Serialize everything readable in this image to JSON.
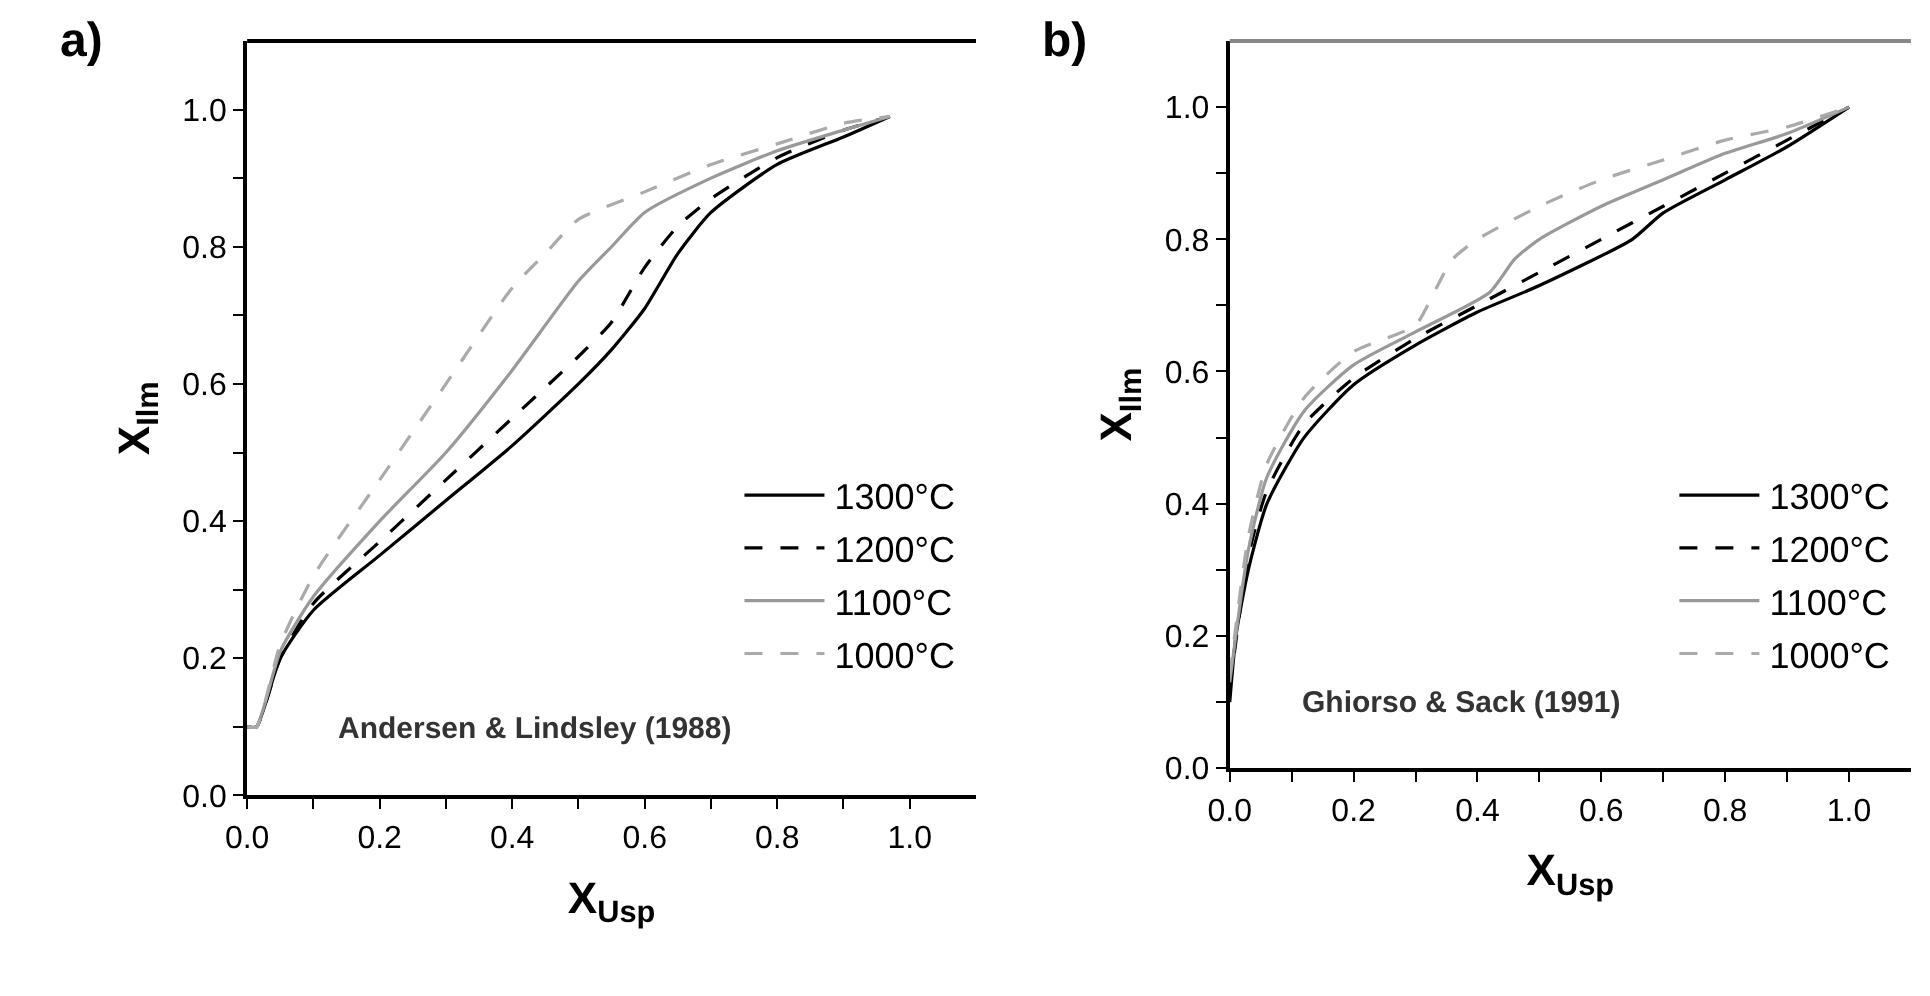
{
  "chart_data": [
    {
      "type": "line",
      "title": "a)",
      "xlabel": "X$_{Usp}$",
      "ylabel": "X$_{Ilm}$",
      "legend": "right",
      "marker": "none",
      "xlim": [
        0,
        1.1
      ],
      "ylim": [
        0,
        1.1
      ],
      "xticks": [
        {
          "value": 0,
          "label": "0.0"
        },
        {
          "value": 0.1,
          "label": null
        },
        {
          "value": 0.2,
          "label": "0.2"
        },
        {
          "value": 0.3,
          "label": null
        },
        {
          "value": 0.4,
          "label": "0.4"
        },
        {
          "value": 0.5,
          "label": null
        },
        {
          "value": 0.6,
          "label": "0.6"
        },
        {
          "value": 0.7,
          "label": null
        },
        {
          "value": 0.8,
          "label": "0.8"
        },
        {
          "value": 0.9,
          "label": null
        },
        {
          "value": 1,
          "label": "1.0"
        }
      ],
      "yticks": [
        {
          "value": 0,
          "label": "0.0"
        },
        {
          "value": 0.1,
          "label": null
        },
        {
          "value": 0.2,
          "label": "0.2"
        },
        {
          "value": 0.3,
          "label": null
        },
        {
          "value": 0.4,
          "label": "0.4"
        },
        {
          "value": 0.5,
          "label": null
        },
        {
          "value": 0.6,
          "label": "0.6"
        },
        {
          "value": 0.7,
          "label": null
        },
        {
          "value": 0.8,
          "label": "0.8"
        },
        {
          "value": 0.9,
          "label": null
        },
        {
          "value": 1,
          "label": "1.0"
        }
      ],
      "annotations": [
        "Andersen & Lindsley (1988)"
      ],
      "series": [
        {
          "name": "1300°C",
          "color": "#000000",
          "line_style": "solid",
          "x": [
            0,
            0.014,
            0.05,
            0.1,
            0.2,
            0.3,
            0.4,
            0.5,
            0.55,
            0.6,
            0.65,
            0.7,
            0.8,
            0.9,
            0.97
          ],
          "values": [
            0.1,
            0.1,
            0.2,
            0.27,
            0.35,
            0.43,
            0.51,
            0.6,
            0.65,
            0.71,
            0.79,
            0.85,
            0.92,
            0.96,
            0.99
          ]
        },
        {
          "name": "1200°C",
          "color": "#000000",
          "line_style": "dashed",
          "x": [
            0,
            0.014,
            0.05,
            0.1,
            0.2,
            0.3,
            0.4,
            0.5,
            0.55,
            0.6,
            0.65,
            0.7,
            0.8,
            0.9,
            0.97
          ],
          "values": [
            0.1,
            0.1,
            0.2,
            0.28,
            0.37,
            0.46,
            0.55,
            0.64,
            0.69,
            0.77,
            0.83,
            0.87,
            0.93,
            0.97,
            0.99
          ]
        },
        {
          "name": "1100°C",
          "color": "#999999",
          "line_style": "solid",
          "x": [
            0,
            0.014,
            0.05,
            0.1,
            0.2,
            0.3,
            0.4,
            0.5,
            0.55,
            0.6,
            0.7,
            0.8,
            0.9,
            0.97
          ],
          "values": [
            0.1,
            0.1,
            0.21,
            0.29,
            0.4,
            0.5,
            0.62,
            0.75,
            0.8,
            0.85,
            0.9,
            0.94,
            0.97,
            0.99
          ]
        },
        {
          "name": "1000°C",
          "color": "#aaaaaa",
          "line_style": "dashed",
          "x": [
            0,
            0.014,
            0.05,
            0.1,
            0.2,
            0.3,
            0.4,
            0.45,
            0.5,
            0.6,
            0.7,
            0.8,
            0.9,
            0.97
          ],
          "values": [
            0.1,
            0.1,
            0.22,
            0.32,
            0.46,
            0.6,
            0.74,
            0.79,
            0.84,
            0.88,
            0.92,
            0.95,
            0.98,
            0.99
          ]
        }
      ]
    },
    {
      "type": "line",
      "title": "b)",
      "xlabel": "X$_{Usp}$",
      "ylabel": "X$_{Ilm}$",
      "legend": "right",
      "marker": "none",
      "xlim": [
        0,
        1.1
      ],
      "ylim": [
        0,
        1.1
      ],
      "xticks": [
        {
          "value": 0,
          "label": "0.0"
        },
        {
          "value": 0.1,
          "label": null
        },
        {
          "value": 0.2,
          "label": "0.2"
        },
        {
          "value": 0.3,
          "label": null
        },
        {
          "value": 0.4,
          "label": "0.4"
        },
        {
          "value": 0.5,
          "label": null
        },
        {
          "value": 0.6,
          "label": "0.6"
        },
        {
          "value": 0.7,
          "label": null
        },
        {
          "value": 0.8,
          "label": "0.8"
        },
        {
          "value": 0.9,
          "label": null
        },
        {
          "value": 1,
          "label": "1.0"
        }
      ],
      "yticks": [
        {
          "value": 0,
          "label": "0.0"
        },
        {
          "value": 0.1,
          "label": null
        },
        {
          "value": 0.2,
          "label": "0.2"
        },
        {
          "value": 0.3,
          "label": null
        },
        {
          "value": 0.4,
          "label": "0.4"
        },
        {
          "value": 0.5,
          "label": null
        },
        {
          "value": 0.6,
          "label": "0.6"
        },
        {
          "value": 0.7,
          "label": null
        },
        {
          "value": 0.8,
          "label": "0.8"
        },
        {
          "value": 0.9,
          "label": null
        },
        {
          "value": 1,
          "label": "1.0"
        }
      ],
      "annotations": [
        "Ghiorso & Sack (1991)"
      ],
      "series": [
        {
          "name": "1300°C",
          "color": "#000000",
          "line_style": "solid",
          "x": [
            0,
            0.01,
            0.03,
            0.06,
            0.12,
            0.2,
            0.3,
            0.4,
            0.5,
            0.65,
            0.7,
            0.8,
            0.9,
            1.0
          ],
          "values": [
            0.1,
            0.2,
            0.3,
            0.4,
            0.5,
            0.58,
            0.64,
            0.69,
            0.73,
            0.8,
            0.84,
            0.89,
            0.94,
            1.0
          ]
        },
        {
          "name": "1200°C",
          "color": "#000000",
          "line_style": "dashed",
          "x": [
            0,
            0.03,
            0.06,
            0.12,
            0.2,
            0.3,
            0.4,
            0.5,
            0.6,
            0.7,
            0.8,
            0.9,
            1.0
          ],
          "values": [
            0.12,
            0.32,
            0.42,
            0.52,
            0.59,
            0.65,
            0.7,
            0.75,
            0.8,
            0.85,
            0.9,
            0.95,
            1.0
          ]
        },
        {
          "name": "1100°C",
          "color": "#999999",
          "line_style": "solid",
          "x": [
            0,
            0.03,
            0.06,
            0.12,
            0.2,
            0.3,
            0.42,
            0.46,
            0.5,
            0.6,
            0.7,
            0.8,
            0.9,
            1.0
          ],
          "values": [
            0.13,
            0.33,
            0.44,
            0.54,
            0.61,
            0.66,
            0.72,
            0.77,
            0.8,
            0.85,
            0.89,
            0.93,
            0.96,
            1.0
          ]
        },
        {
          "name": "1000°C",
          "color": "#aaaaaa",
          "line_style": "dashed",
          "x": [
            0,
            0.03,
            0.06,
            0.12,
            0.2,
            0.3,
            0.33,
            0.36,
            0.4,
            0.5,
            0.6,
            0.7,
            0.8,
            0.9,
            1.0
          ],
          "values": [
            0.14,
            0.35,
            0.46,
            0.56,
            0.63,
            0.67,
            0.72,
            0.77,
            0.8,
            0.85,
            0.89,
            0.92,
            0.95,
            0.97,
            1.0
          ]
        }
      ]
    }
  ]
}
